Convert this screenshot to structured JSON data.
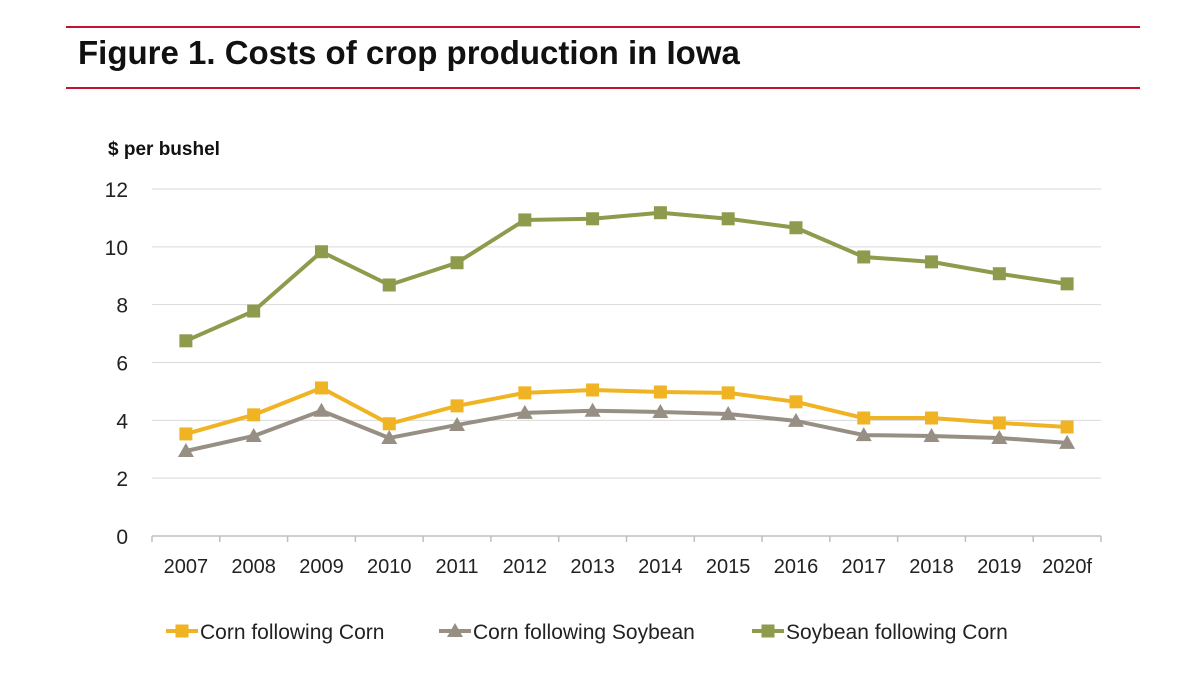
{
  "chart_data": {
    "type": "line",
    "title": "Figure 1. Costs of crop production in Iowa",
    "ylabel": "$ per bushel",
    "xlabel": "",
    "ylim": [
      0,
      12
    ],
    "yticks": [
      0,
      2,
      4,
      6,
      8,
      10,
      12
    ],
    "grid": true,
    "legend": "bottom",
    "categories": [
      "2007",
      "2008",
      "2009",
      "2010",
      "2011",
      "2012",
      "2013",
      "2014",
      "2015",
      "2016",
      "2017",
      "2018",
      "2019",
      "2020f"
    ],
    "series": [
      {
        "name": "Corn following Corn",
        "marker": "square",
        "color": "#f0b323",
        "values": [
          3.53,
          4.19,
          5.12,
          3.88,
          4.5,
          4.95,
          5.05,
          4.98,
          4.95,
          4.64,
          4.08,
          4.08,
          3.91,
          3.77
        ]
      },
      {
        "name": "Corn following Soybean",
        "marker": "triangle",
        "color": "#978f84",
        "values": [
          2.94,
          3.46,
          4.33,
          3.39,
          3.84,
          4.26,
          4.33,
          4.29,
          4.22,
          3.98,
          3.49,
          3.46,
          3.39,
          3.22
        ]
      },
      {
        "name": "Soybean following Corn",
        "marker": "square",
        "color": "#8e9a4c",
        "values": [
          6.75,
          7.78,
          9.83,
          8.68,
          9.45,
          10.93,
          10.97,
          11.18,
          10.97,
          10.66,
          9.65,
          9.48,
          9.07,
          8.72
        ]
      }
    ]
  },
  "colors": {
    "rule": "#c41230"
  }
}
